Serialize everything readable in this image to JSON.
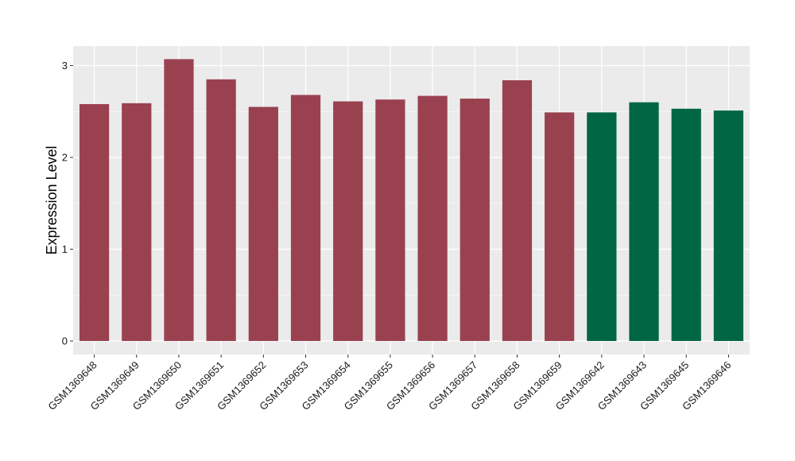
{
  "chart_data": {
    "type": "bar",
    "title": "",
    "xlabel": "",
    "ylabel": "Expression Level",
    "ylim": [
      0,
      3.2
    ],
    "yticks": [
      0,
      1,
      2,
      3
    ],
    "categories": [
      "GSM1369648",
      "GSM1369649",
      "GSM1369650",
      "GSM1369651",
      "GSM1369652",
      "GSM1369653",
      "GSM1369654",
      "GSM1369655",
      "GSM1369656",
      "GSM1369657",
      "GSM1369658",
      "GSM1369659",
      "GSM1369642",
      "GSM1369643",
      "GSM1369645",
      "GSM1369646"
    ],
    "values": [
      2.58,
      2.59,
      3.07,
      2.85,
      2.55,
      2.68,
      2.61,
      2.63,
      2.67,
      2.64,
      2.84,
      2.49,
      2.49,
      2.6,
      2.53,
      2.51
    ],
    "bar_colors": [
      "#9a4150",
      "#9a4150",
      "#9a4150",
      "#9a4150",
      "#9a4150",
      "#9a4150",
      "#9a4150",
      "#9a4150",
      "#9a4150",
      "#9a4150",
      "#9a4150",
      "#9a4150",
      "#006644",
      "#006644",
      "#006644",
      "#006644"
    ],
    "grid": true,
    "panel_background": "#ebebeb",
    "grid_color": "#ffffff"
  }
}
